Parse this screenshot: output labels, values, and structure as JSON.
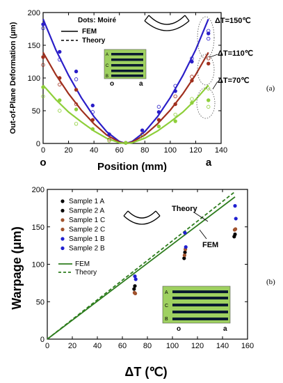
{
  "colors": {
    "deep_blue": "#2a1ec8",
    "dark_red": "#a0301e",
    "light_green": "#8ecf3a",
    "black": "#000000",
    "brown": "#a0522d",
    "blue": "#2020d0",
    "dark_green": "#2e7d1e",
    "inset_bg": "#9ed060",
    "inset_stripe": "#0a1a30"
  },
  "chart_data": [
    {
      "type": "scatter",
      "panel_label": "(a)",
      "xlabel": "Position (mm)",
      "ylabel": "Out-of-Plane Deformation (μm)",
      "xlim": [
        0,
        140
      ],
      "ylim": [
        0,
        200
      ],
      "xticks": [
        "0",
        "20",
        "40",
        "60",
        "80",
        "100",
        "120",
        "140"
      ],
      "yticks": [
        "0",
        "50",
        "100",
        "150",
        "200"
      ],
      "x_end_labels": [
        "o",
        "a"
      ],
      "legend": {
        "title": "Dots: Moiré",
        "fem": "FEM",
        "theory": "Theory"
      },
      "annotations": [
        "ΔT=150℃",
        "ΔT=110℃",
        "ΔT=70℃"
      ],
      "inset": {
        "labels": [
          "A",
          "C",
          "B"
        ],
        "bottom_labels": [
          "o",
          "a"
        ]
      },
      "series": [
        {
          "name": "ΔT=150℃",
          "color": "#2a1ec8",
          "fem": {
            "x": [
              0,
              10,
              20,
              30,
              40,
              50,
              60,
              65,
              70,
              80,
              90,
              100,
              110,
              120,
              130
            ],
            "y": [
              190,
              143,
              104,
              70,
              41,
              18,
              3,
              0,
              3,
              18,
              41,
              70,
              104,
              143,
              190
            ]
          },
          "points": {
            "x": [
              0,
              0,
              13,
              13,
              26,
              26,
              39,
              39,
              52,
              65,
              78,
              91,
              91,
              104,
              104,
              117,
              117,
              130,
              130,
              130
            ],
            "y": [
              182,
              176,
              140,
              128,
              110,
              98,
              58,
              48,
              14,
              1,
              20,
              56,
              48,
              88,
              80,
              130,
              125,
              172,
              168,
              160
            ]
          }
        },
        {
          "name": "ΔT=110℃",
          "color": "#a0301e",
          "fem": {
            "x": [
              0,
              10,
              20,
              30,
              40,
              50,
              60,
              65,
              70,
              80,
              90,
              100,
              110,
              120,
              130
            ],
            "y": [
              139,
              105,
              76,
              51,
              30,
              13,
              2,
              0,
              2,
              13,
              30,
              51,
              76,
              105,
              139
            ]
          },
          "points": {
            "x": [
              0,
              0,
              13,
              13,
              26,
              26,
              39,
              52,
              65,
              78,
              91,
              104,
              104,
              117,
              117,
              130,
              130
            ],
            "y": [
              132,
              120,
              100,
              90,
              82,
              60,
              36,
              6,
              1,
              14,
              36,
              72,
              60,
              102,
              96,
              130,
              122
            ]
          }
        },
        {
          "name": "ΔT=70℃",
          "color": "#8ecf3a",
          "fem": {
            "x": [
              0,
              10,
              20,
              30,
              40,
              50,
              60,
              65,
              70,
              80,
              90,
              100,
              110,
              120,
              130
            ],
            "y": [
              89,
              67,
              48,
              33,
              19,
              8,
              1,
              0,
              1,
              8,
              19,
              33,
              48,
              67,
              89
            ]
          },
          "points": {
            "x": [
              0,
              0,
              13,
              13,
              26,
              26,
              39,
              52,
              65,
              78,
              91,
              104,
              104,
              117,
              117,
              130,
              130,
              130
            ],
            "y": [
              86,
              72,
              66,
              50,
              52,
              30,
              22,
              4,
              1,
              10,
              26,
              44,
              34,
              68,
              62,
              84,
              66,
              56
            ]
          }
        }
      ]
    },
    {
      "type": "scatter",
      "panel_label": "(b)",
      "xlabel": "ΔT (℃)",
      "ylabel": "Warpage (μm)",
      "xlim": [
        0,
        160
      ],
      "ylim": [
        0,
        200
      ],
      "xticks": [
        "0",
        "20",
        "40",
        "60",
        "80",
        "100",
        "120",
        "140",
        "160"
      ],
      "yticks": [
        "0",
        "50",
        "100",
        "150",
        "200"
      ],
      "annotations": [
        "Theory",
        "FEM"
      ],
      "inset": {
        "labels": [
          "A",
          "C",
          "B"
        ],
        "bottom_labels": [
          "o",
          "a"
        ]
      },
      "fem_line": {
        "name": "FEM",
        "color": "#2e7d1e",
        "x": [
          0,
          150
        ],
        "y": [
          0,
          190
        ]
      },
      "theory_line": {
        "name": "Theory",
        "color": "#2e7d1e",
        "x": [
          0,
          150
        ],
        "y": [
          0,
          197
        ]
      },
      "series": [
        {
          "name": "Sample 1 A",
          "color": "#000000",
          "x": [
            70,
            110,
            150
          ],
          "y": [
            67,
            108,
            137
          ]
        },
        {
          "name": "Sample 2 A",
          "color": "#000000",
          "x": [
            70,
            110,
            150
          ],
          "y": [
            71,
            116,
            140
          ]
        },
        {
          "name": "Sample 1 C",
          "color": "#a0522d",
          "x": [
            70,
            110,
            150
          ],
          "y": [
            62,
            112,
            146
          ]
        },
        {
          "name": "Sample 2 C",
          "color": "#a0522d",
          "x": [
            70,
            110,
            150
          ],
          "y": [
            61,
            120,
            147
          ]
        },
        {
          "name": "Sample 1 B",
          "color": "#2020d0",
          "x": [
            70,
            110,
            150
          ],
          "y": [
            84,
            142,
            178
          ]
        },
        {
          "name": "Sample 2 B",
          "color": "#2020d0",
          "x": [
            70,
            110,
            150
          ],
          "y": [
            80,
            123,
            161
          ]
        }
      ]
    }
  ]
}
